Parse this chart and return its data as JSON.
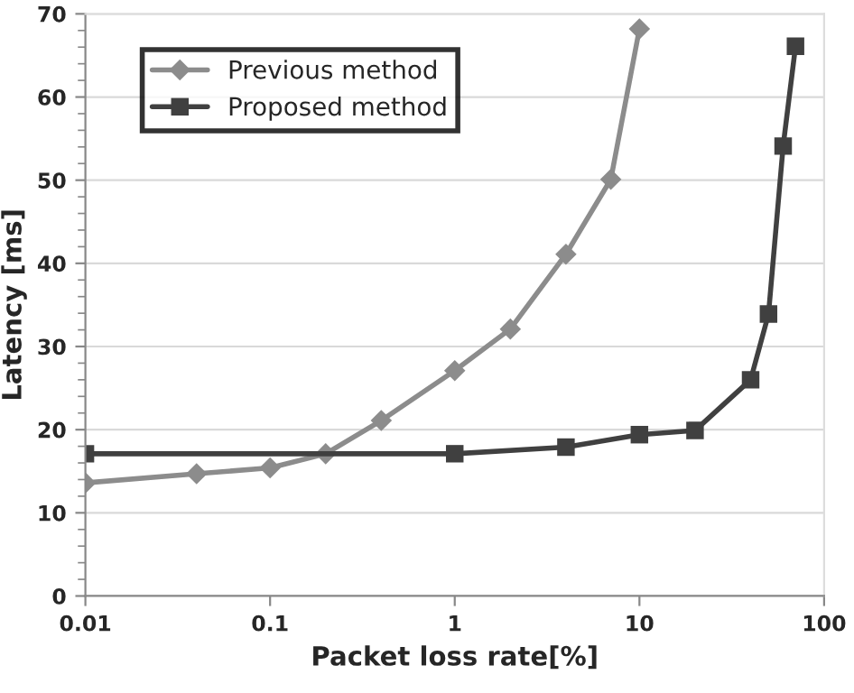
{
  "chart_data": {
    "type": "line",
    "xlabel": "Packet loss rate[%]",
    "ylabel": "Latency [ms]",
    "log": "x",
    "xlim": [
      0.01,
      100
    ],
    "xticks": [
      0.01,
      0.1,
      1,
      10,
      100
    ],
    "ylim": [
      0,
      70
    ],
    "yticks": [
      0,
      10,
      20,
      30,
      40,
      50,
      60,
      70
    ],
    "grid": "y",
    "legend": "top left",
    "series": [
      {
        "name": "Previous method",
        "color": "#8c8c8c",
        "marker": "diamond",
        "x": [
          0.01,
          0.04,
          0.1,
          0.2,
          0.4,
          1,
          2,
          4,
          7,
          10
        ],
        "values": [
          13.6,
          14.7,
          15.4,
          17.1,
          21.1,
          27.1,
          32.1,
          41.1,
          50.1,
          68.2
        ]
      },
      {
        "name": "Proposed method",
        "color": "#404040",
        "marker": "square",
        "x": [
          0.01,
          1,
          4,
          10,
          20,
          40,
          50,
          60,
          70
        ],
        "values": [
          17.1,
          17.1,
          17.9,
          19.4,
          19.9,
          26,
          33.9,
          54.1,
          66.1
        ]
      }
    ]
  }
}
